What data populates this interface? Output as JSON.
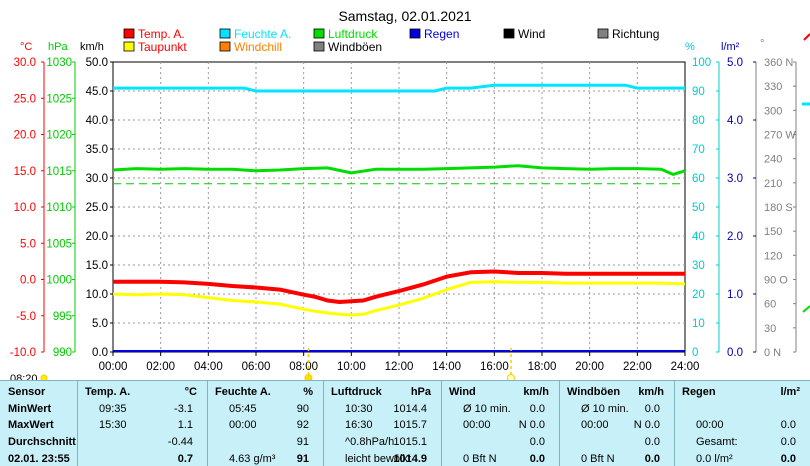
{
  "chart_data": {
    "type": "line",
    "title": "Samstag, 02.01.2021",
    "legend": [
      {
        "name": "Temp. A.",
        "color": "#ff0000"
      },
      {
        "name": "Feuchte A.",
        "color": "#00e5ff"
      },
      {
        "name": "Luftdruck",
        "color": "#00dd00"
      },
      {
        "name": "Regen",
        "color": "#0000dd"
      },
      {
        "name": "Wind",
        "color": "#000000"
      },
      {
        "name": "Richtung",
        "color": "#808080"
      },
      {
        "name": "Taupunkt",
        "color": "#ffff00"
      },
      {
        "name": "Windchill",
        "color": "#ff8000"
      },
      {
        "name": "Windböen",
        "color": "#808080"
      }
    ],
    "axes": {
      "temp": {
        "unit": "°C",
        "min": -10,
        "max": 30,
        "ticks": [
          "30.0",
          "25.0",
          "20.0",
          "15.0",
          "10.0",
          "5.0",
          "0.0",
          "-5.0",
          "-10.0"
        ],
        "color": "#ff0000"
      },
      "pressure": {
        "unit": "hPa",
        "min": 990,
        "max": 1030,
        "ticks": [
          "1030",
          "1025",
          "1020",
          "1015",
          "1010",
          "1005",
          "1000",
          "995",
          "990"
        ],
        "color": "#00cc00"
      },
      "wind": {
        "unit": "km/h",
        "min": 0,
        "max": 50,
        "ticks": [
          "50.0",
          "45.0",
          "40.0",
          "35.0",
          "30.0",
          "25.0",
          "20.0",
          "15.0",
          "10.0",
          "5.0",
          "0.0"
        ],
        "color": "#000000"
      },
      "humidity": {
        "unit": "%",
        "min": 0,
        "max": 100,
        "ticks": [
          "100",
          "90",
          "80",
          "70",
          "60",
          "50",
          "40",
          "30",
          "20",
          "10",
          "0"
        ],
        "color": "#00cccc"
      },
      "rain": {
        "unit": "l/m²",
        "min": 0,
        "max": 5,
        "ticks": [
          "5.0",
          "4.0",
          "3.0",
          "2.0",
          "1.0",
          "0.0"
        ],
        "color": "#0000aa"
      },
      "direction": {
        "unit": "°",
        "min": 0,
        "max": 360,
        "ticks": [
          "360 N",
          "330",
          "300",
          "270 W",
          "240",
          "210",
          "180 S",
          "150",
          "120",
          "90 O",
          "60",
          "30",
          "0  N"
        ],
        "color": "#808080"
      },
      "x": {
        "min": 0,
        "max": 24,
        "ticks": [
          "00:00",
          "02:00",
          "04:00",
          "06:00",
          "08:00",
          "10:00",
          "12:00",
          "14:00",
          "16:00",
          "18:00",
          "20:00",
          "22:00",
          "24:00"
        ]
      }
    },
    "series": [
      {
        "name": "Temp. A.",
        "axis": "temp",
        "color": "#ff0000",
        "x": [
          0,
          1,
          2,
          3,
          4,
          5,
          6,
          7,
          8,
          8.5,
          9,
          9.5,
          10,
          10.5,
          11,
          12,
          13,
          14,
          15,
          16,
          17,
          18,
          19,
          20,
          21,
          22,
          23,
          24
        ],
        "y": [
          -0.3,
          -0.3,
          -0.3,
          -0.4,
          -0.6,
          -0.9,
          -1.1,
          -1.4,
          -2.1,
          -2.4,
          -2.9,
          -3.1,
          -3.0,
          -2.9,
          -2.4,
          -1.6,
          -0.7,
          0.4,
          1.0,
          1.1,
          0.9,
          0.9,
          0.8,
          0.8,
          0.8,
          0.8,
          0.8,
          0.8
        ]
      },
      {
        "name": "Taupunkt",
        "axis": "temp",
        "color": "#ffff00",
        "x": [
          0,
          1,
          2,
          3,
          4,
          5,
          6,
          7,
          8,
          8.5,
          9,
          9.5,
          10,
          10.5,
          11,
          12,
          13,
          14,
          15,
          16,
          17,
          18,
          19,
          20,
          21,
          22,
          23,
          24
        ],
        "y": [
          -2.0,
          -2.1,
          -2.0,
          -2.1,
          -2.5,
          -2.9,
          -3.1,
          -3.4,
          -4.1,
          -4.4,
          -4.6,
          -4.8,
          -4.9,
          -4.8,
          -4.3,
          -3.5,
          -2.6,
          -1.4,
          -0.4,
          -0.3,
          -0.4,
          -0.4,
          -0.5,
          -0.5,
          -0.5,
          -0.5,
          -0.5,
          -0.6
        ]
      },
      {
        "name": "Feuchte A.",
        "axis": "humidity",
        "color": "#00e5ff",
        "x": [
          0,
          2,
          4,
          5.5,
          6,
          8,
          10,
          12,
          13.5,
          14,
          15,
          16,
          18,
          20,
          21.5,
          22,
          23,
          24
        ],
        "y": [
          91,
          91,
          91,
          91,
          90,
          90,
          90,
          90,
          90,
          91,
          91,
          92,
          92,
          92,
          92,
          91,
          91,
          91
        ]
      },
      {
        "name": "Luftdruck",
        "axis": "pressure",
        "color": "#00dd00",
        "x": [
          0,
          1,
          2,
          3,
          4,
          5,
          6,
          7,
          8,
          9,
          10,
          11,
          12,
          13,
          14,
          15,
          16,
          17,
          18,
          19,
          20,
          21,
          22,
          23,
          23.5,
          24
        ],
        "y": [
          1015.1,
          1015.3,
          1015.2,
          1015.3,
          1015.2,
          1015.2,
          1015.0,
          1015.1,
          1015.3,
          1015.4,
          1014.7,
          1015.2,
          1015.2,
          1015.2,
          1015.3,
          1015.4,
          1015.5,
          1015.7,
          1015.4,
          1015.3,
          1015.2,
          1015.3,
          1015.3,
          1015.2,
          1014.5,
          1015.0
        ]
      }
    ],
    "reference_lines": [
      {
        "axis": "humidity",
        "value": 58,
        "style": "dashed",
        "color": "#00cc00"
      }
    ],
    "bottom_label": "08:20"
  },
  "table": {
    "cols": [
      {
        "h1": "Sensor",
        "h2": ""
      },
      {
        "h1": "Temp. A.",
        "h2": "°C"
      },
      {
        "h1": "Feuchte A.",
        "h2": "%"
      },
      {
        "h1": "Luftdruck",
        "h2": "hPa"
      },
      {
        "h1": "Wind",
        "h2": "km/h"
      },
      {
        "h1": "Windböen",
        "h2": "km/h"
      },
      {
        "h1": "Regen",
        "h2": "l/m²"
      }
    ],
    "row_labels": [
      "MinWert",
      "MaxWert",
      "Durchschnitt",
      "02.01. 23:55"
    ],
    "rows": [
      [
        [
          "09:35",
          "-3.1"
        ],
        [
          "05:45",
          "90"
        ],
        [
          "10:30",
          "1014.4"
        ],
        [
          "Ø 10 min.",
          "0.0"
        ],
        [
          "Ø 10 min.",
          "0.0"
        ],
        [
          "",
          ""
        ]
      ],
      [
        [
          "15:30",
          "1.1"
        ],
        [
          "00:00",
          "92"
        ],
        [
          "16:30",
          "1015.7"
        ],
        [
          "00:00",
          "N 0.0"
        ],
        [
          "00:00",
          "N 0.0"
        ],
        [
          "00:00",
          "0.0"
        ]
      ],
      [
        [
          "",
          "-0.44"
        ],
        [
          "",
          "91"
        ],
        [
          "^0.8hPa/h",
          "1015.1"
        ],
        [
          "",
          "0.0"
        ],
        [
          "",
          "0.0"
        ],
        [
          "Gesamt:",
          "0.0"
        ]
      ],
      [
        [
          "",
          "0.7"
        ],
        [
          "4.63 g/m³",
          "91"
        ],
        [
          "leicht bewölkt",
          "1014.9"
        ],
        [
          "0 Bft N",
          "0.0"
        ],
        [
          "0 Bft N",
          "0.0"
        ],
        [
          "0.0 l/m²",
          "0.0"
        ]
      ]
    ]
  }
}
